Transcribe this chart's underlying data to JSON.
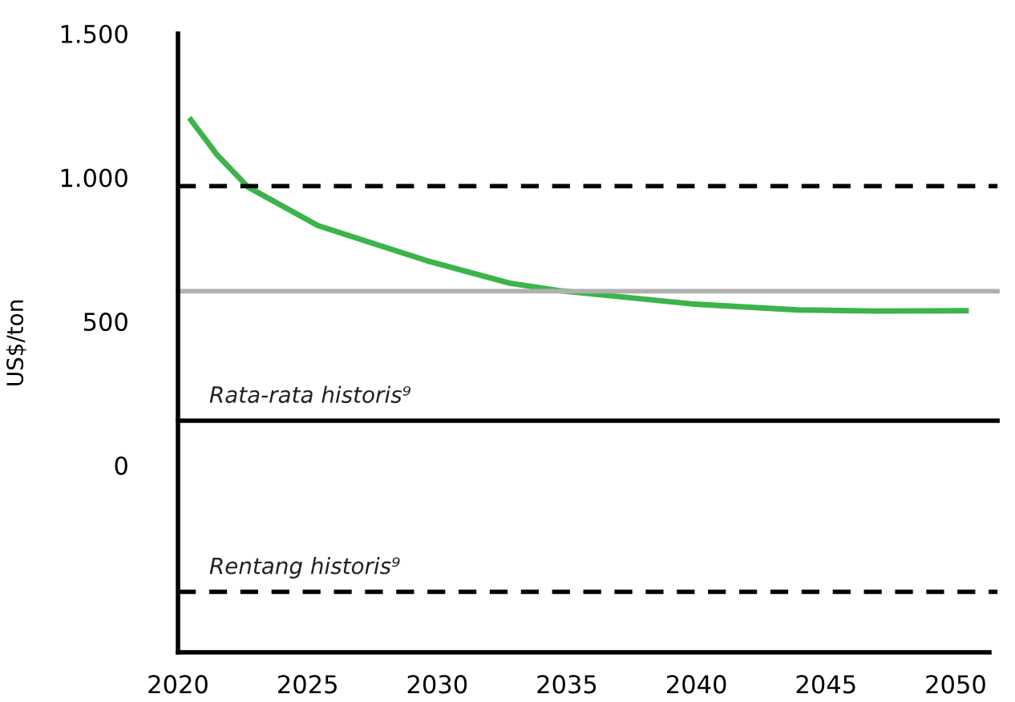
{
  "chart_data": {
    "type": "line",
    "ylabel": "US$/ton",
    "x": [
      2020.5,
      2021.5,
      2022.7,
      2025.4,
      2029.6,
      2032.8,
      2034.7,
      2039.8,
      2043.9,
      2046.9,
      2050.4
    ],
    "series": [
      {
        "color": "#3cb44a",
        "values": [
          1200,
          1080,
          967,
          833,
          711,
          633,
          607,
          561,
          540,
          536,
          537
        ]
      }
    ],
    "xlim": [
      2020,
      2051.3
    ],
    "ylim": [
      -650,
      1500
    ],
    "xticks": [
      2020,
      2025,
      2030,
      2035,
      2040,
      2045,
      2050
    ],
    "yticks": [
      {
        "value": 1500,
        "label": "1.500"
      },
      {
        "value": 1000,
        "label": "1.000"
      },
      500,
      0
    ],
    "ref_lines": [
      {
        "axis": "y",
        "value": 970,
        "line_style": "dashed",
        "color": "#000000"
      },
      {
        "axis": "y",
        "value": 605,
        "line_style": "solid",
        "color": "#b0b0b0"
      },
      {
        "axis": "y",
        "value": 155,
        "line_style": "solid",
        "color": "#000000",
        "label": "Rata-rata historis⁹"
      },
      {
        "axis": "y",
        "value": -440,
        "line_style": "dashed",
        "color": "#000000",
        "label": "Rentang historis⁹"
      }
    ],
    "grid": false,
    "legend": false,
    "marker": "none",
    "line_style": "solid"
  }
}
